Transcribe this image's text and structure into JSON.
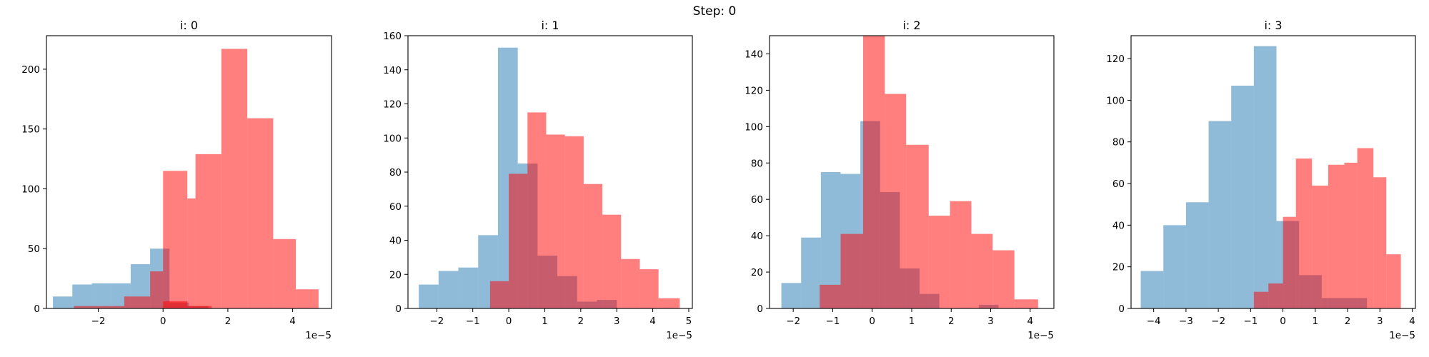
{
  "figure": {
    "suptitle": "Step: 0"
  },
  "colors": {
    "blue": "#1f77b4",
    "red": "#ff0000",
    "alpha": 0.5
  },
  "chart_data": [
    {
      "type": "bar",
      "title": "i: 0",
      "offset_label": "1e−5",
      "xlim": [
        -3.6,
        5.2
      ],
      "ylim": [
        0,
        228
      ],
      "xticks": [
        -2,
        0,
        2,
        4
      ],
      "yticks": [
        0,
        50,
        100,
        150,
        200
      ],
      "series": [
        {
          "color": "blue",
          "bin_edges": [
            -3.4,
            -2.8,
            -2.2,
            -1.6,
            -1.0,
            -0.4,
            0.2,
            0.8,
            1.4,
            2.0,
            2.6
          ],
          "counts": [
            10,
            20,
            21,
            21,
            37,
            50,
            5,
            2,
            0,
            0
          ]
        },
        {
          "color": "red",
          "bin_edges": [
            -2.75,
            -2.0,
            -1.2,
            -0.4,
            0.0,
            0.75,
            1.5,
            2.25,
            3.0,
            3.75,
            4.8
          ],
          "counts": [
            2,
            2,
            10,
            31,
            6,
            2,
            0,
            0,
            0,
            0
          ]
        },
        {
          "color": "red",
          "bin_edges": [
            -0.45,
            0.0,
            0.75,
            1.0,
            1.8,
            2.6,
            3.4,
            4.1,
            4.8
          ],
          "counts": [
            0,
            115,
            92,
            129,
            217,
            159,
            58,
            16
          ]
        }
      ]
    },
    {
      "type": "bar",
      "title": "i: 1",
      "offset_label": "1e−5",
      "xlim": [
        -2.8,
        5.1
      ],
      "ylim": [
        0,
        160
      ],
      "xticks": [
        -2,
        -1,
        0,
        1,
        2,
        3,
        4,
        5
      ],
      "yticks": [
        0,
        20,
        40,
        60,
        80,
        100,
        120,
        140,
        160
      ],
      "series": [
        {
          "color": "blue",
          "bin_edges": [
            -2.5,
            -1.95,
            -1.4,
            -0.85,
            -0.3,
            0.25,
            0.8,
            1.35,
            1.9,
            2.45,
            3.0
          ],
          "counts": [
            14,
            22,
            24,
            43,
            153,
            85,
            31,
            19,
            4,
            5
          ]
        },
        {
          "color": "red",
          "bin_edges": [
            -0.52,
            0.0,
            0.52,
            1.04,
            1.56,
            2.08,
            2.6,
            3.12,
            3.64,
            4.16,
            4.75
          ],
          "counts": [
            16,
            79,
            115,
            102,
            101,
            73,
            55,
            29,
            23,
            6
          ]
        }
      ]
    },
    {
      "type": "bar",
      "title": "i: 2",
      "offset_label": "1e−5",
      "xlim": [
        -2.6,
        4.6
      ],
      "ylim": [
        0,
        150
      ],
      "xticks": [
        -2,
        -1,
        0,
        1,
        2,
        3,
        4
      ],
      "yticks": [
        0,
        20,
        40,
        60,
        80,
        100,
        120,
        140
      ],
      "series": [
        {
          "color": "blue",
          "bin_edges": [
            -2.3,
            -1.8,
            -1.3,
            -0.8,
            -0.3,
            0.2,
            0.7,
            1.2,
            1.7,
            2.2,
            2.7,
            3.2
          ],
          "counts": [
            14,
            39,
            75,
            74,
            103,
            64,
            22,
            8,
            0,
            0,
            2
          ]
        },
        {
          "color": "red",
          "bin_edges": [
            -1.33,
            -0.8,
            -0.23,
            0.32,
            0.86,
            1.43,
            1.97,
            2.51,
            3.05,
            3.6,
            4.2
          ],
          "counts": [
            13,
            41,
            150,
            118,
            90,
            51,
            59,
            41,
            32,
            5
          ]
        }
      ]
    },
    {
      "type": "bar",
      "title": "i: 3",
      "offset_label": "1e−5",
      "xlim": [
        -4.7,
        4.1
      ],
      "ylim": [
        0,
        131
      ],
      "xticks": [
        -4,
        -3,
        -2,
        -1,
        0,
        1,
        2,
        3,
        4
      ],
      "yticks": [
        0,
        20,
        40,
        60,
        80,
        100,
        120
      ],
      "series": [
        {
          "color": "blue",
          "bin_edges": [
            -4.4,
            -3.7,
            -3.0,
            -2.3,
            -1.6,
            -0.9,
            -0.2,
            0.5,
            1.2,
            1.9,
            2.6
          ],
          "counts": [
            18,
            40,
            51,
            90,
            107,
            126,
            42,
            16,
            5,
            5
          ]
        },
        {
          "color": "red",
          "bin_edges": [
            -0.9,
            -0.45,
            0.0,
            0.4,
            0.9,
            1.4,
            1.9,
            2.3,
            2.8,
            3.2,
            3.65
          ],
          "counts": [
            8,
            12,
            44,
            72,
            59,
            69,
            70,
            77,
            63,
            26
          ]
        }
      ]
    }
  ]
}
